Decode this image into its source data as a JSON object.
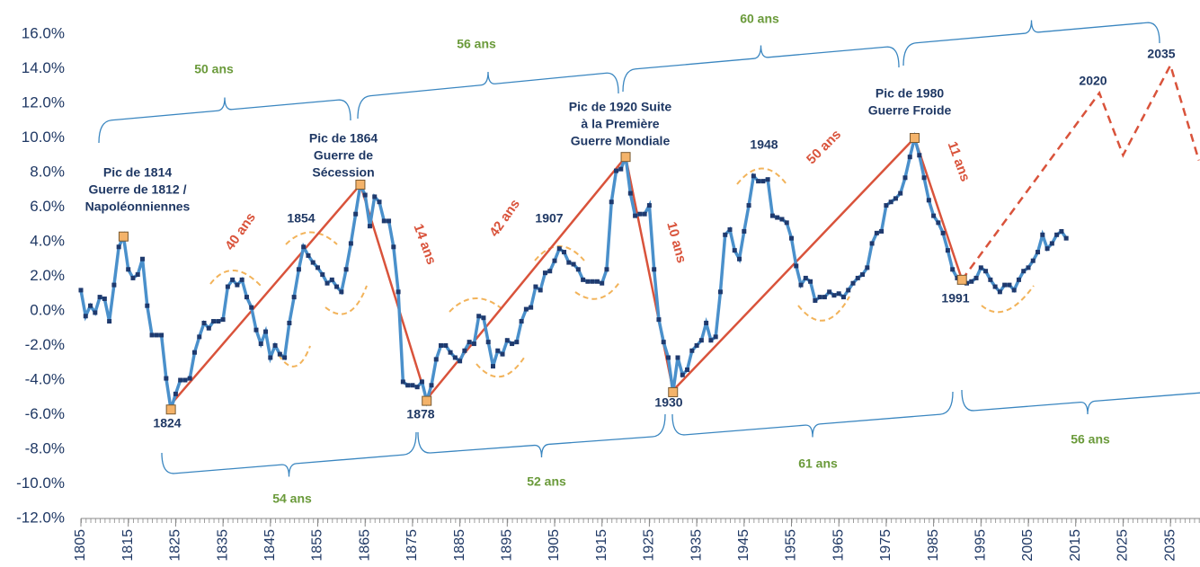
{
  "chart_data": {
    "type": "line",
    "xlim": [
      1805,
      2041
    ],
    "ylim": [
      -12,
      16
    ],
    "xticks": [
      1805,
      1815,
      1825,
      1835,
      1845,
      1855,
      1865,
      1875,
      1885,
      1895,
      1905,
      1915,
      1925,
      1935,
      1945,
      1955,
      1965,
      1975,
      1985,
      1995,
      2005,
      2015,
      2025,
      2035
    ],
    "yticks": [
      {
        "value": 16,
        "label": "16.0%"
      },
      {
        "value": 14,
        "label": "14.0%"
      },
      {
        "value": 12,
        "label": "12.0%"
      },
      {
        "value": 10,
        "label": "10.0%"
      },
      {
        "value": 8,
        "label": "8.0%"
      },
      {
        "value": 6,
        "label": "6.0%"
      },
      {
        "value": 4,
        "label": "4.0%"
      },
      {
        "value": 2,
        "label": "2.0%"
      },
      {
        "value": 0,
        "label": "0.0%"
      },
      {
        "value": -2,
        "label": "-2.0%"
      },
      {
        "value": -4,
        "label": "-4.0%"
      },
      {
        "value": -6,
        "label": "-6.0%"
      },
      {
        "value": -8,
        "label": "-8.0%"
      },
      {
        "value": -10,
        "label": "-10.0%"
      },
      {
        "value": -12,
        "label": "-12.0%"
      }
    ],
    "series": [
      {
        "color": "#4a90cb",
        "marker_color": "#1f3a6e",
        "x": [
          1805,
          1806,
          1807,
          1808,
          1809,
          1810,
          1811,
          1812,
          1813,
          1814,
          1815,
          1816,
          1817,
          1818,
          1819,
          1820,
          1821,
          1822,
          1823,
          1824,
          1825,
          1826,
          1827,
          1828,
          1829,
          1830,
          1831,
          1832,
          1833,
          1834,
          1835,
          1836,
          1837,
          1838,
          1839,
          1840,
          1841,
          1842,
          1843,
          1844,
          1845,
          1846,
          1847,
          1848,
          1849,
          1850,
          1851,
          1852,
          1853,
          1854,
          1855,
          1856,
          1857,
          1858,
          1859,
          1860,
          1861,
          1862,
          1863,
          1864,
          1865,
          1866,
          1867,
          1868,
          1869,
          1870,
          1871,
          1872,
          1873,
          1874,
          1875,
          1876,
          1877,
          1878,
          1879,
          1880,
          1881,
          1882,
          1883,
          1884,
          1885,
          1886,
          1887,
          1888,
          1889,
          1890,
          1891,
          1892,
          1893,
          1894,
          1895,
          1896,
          1897,
          1898,
          1899,
          1900,
          1901,
          1902,
          1903,
          1904,
          1905,
          1906,
          1907,
          1908,
          1909,
          1910,
          1911,
          1912,
          1913,
          1914,
          1915,
          1916,
          1917,
          1918,
          1919,
          1920,
          1921,
          1922,
          1923,
          1924,
          1925,
          1926,
          1927,
          1928,
          1929,
          1930,
          1931,
          1932,
          1933,
          1934,
          1935,
          1936,
          1937,
          1938,
          1939,
          1940,
          1941,
          1942,
          1943,
          1944,
          1945,
          1946,
          1947,
          1948,
          1949,
          1950,
          1951,
          1952,
          1953,
          1954,
          1955,
          1956,
          1957,
          1958,
          1959,
          1960,
          1961,
          1962,
          1963,
          1964,
          1965,
          1966,
          1967,
          1968,
          1969,
          1970,
          1971,
          1972,
          1973,
          1974,
          1975,
          1976,
          1977,
          1978,
          1979,
          1980,
          1981,
          1982,
          1983,
          1984,
          1985,
          1986,
          1987,
          1988,
          1989,
          1990,
          1991,
          1992,
          1993,
          1994,
          1995,
          1996,
          1997,
          1998,
          1999,
          2000,
          2001,
          2002,
          2003,
          2004,
          2005,
          2006,
          2007,
          2008,
          2009,
          2010,
          2011,
          2012,
          2013
        ],
        "values": [
          1.2,
          -0.3,
          0.3,
          -0.1,
          0.8,
          0.7,
          -0.6,
          1.5,
          3.7,
          4.3,
          2.4,
          1.9,
          2.1,
          3.0,
          0.3,
          -1.4,
          -1.4,
          -1.4,
          -3.9,
          -5.7,
          -4.8,
          -4.0,
          -4.0,
          -3.9,
          -2.4,
          -1.5,
          -0.7,
          -1.0,
          -0.6,
          -0.6,
          -0.5,
          1.4,
          1.8,
          1.5,
          1.8,
          0.8,
          0.2,
          -1.1,
          -1.9,
          -1.2,
          -2.7,
          -2.0,
          -2.5,
          -2.7,
          -0.7,
          0.8,
          2.4,
          3.7,
          3.2,
          2.8,
          2.5,
          2.1,
          1.6,
          1.8,
          1.4,
          1.1,
          2.4,
          3.9,
          5.6,
          7.3,
          6.7,
          4.9,
          6.6,
          6.3,
          5.2,
          5.2,
          3.7,
          1.1,
          -4.1,
          -4.3,
          -4.3,
          -4.4,
          -4.1,
          -5.2,
          -4.3,
          -2.8,
          -2.0,
          -2.0,
          -2.4,
          -2.7,
          -2.9,
          -2.3,
          -1.8,
          -1.9,
          -0.3,
          -0.4,
          -1.8,
          -3.2,
          -2.3,
          -2.5,
          -1.7,
          -1.9,
          -1.8,
          -0.6,
          0.1,
          0.2,
          1.4,
          1.2,
          2.2,
          2.3,
          2.9,
          3.6,
          3.4,
          2.8,
          2.7,
          2.4,
          1.8,
          1.7,
          1.7,
          1.7,
          1.6,
          2.4,
          6.3,
          8.1,
          8.2,
          8.9,
          6.8,
          5.5,
          5.6,
          5.6,
          6.1,
          2.4,
          -0.5,
          -1.8,
          -2.7,
          -4.7,
          -2.7,
          -3.7,
          -3.4,
          -2.3,
          -2.0,
          -1.7,
          -0.7,
          -1.7,
          -1.5,
          1.1,
          4.4,
          4.7,
          3.5,
          3.0,
          4.6,
          6.1,
          7.8,
          7.5,
          7.5,
          7.6,
          5.5,
          5.4,
          5.3,
          5.1,
          4.2,
          2.6,
          1.5,
          1.9,
          1.7,
          0.6,
          0.8,
          0.8,
          1.1,
          0.9,
          1.0,
          0.8,
          1.2,
          1.6,
          1.9,
          2.1,
          2.5,
          3.9,
          4.5,
          4.6,
          6.1,
          6.3,
          6.5,
          6.8,
          7.7,
          8.9,
          10.0,
          9.0,
          7.7,
          6.4,
          5.5,
          5.1,
          4.5,
          3.5,
          2.4,
          1.9,
          1.8,
          1.6,
          1.7,
          1.9,
          2.5,
          2.3,
          1.8,
          1.4,
          1.1,
          1.5,
          1.5,
          1.2,
          1.8,
          2.3,
          2.5,
          2.9,
          3.4,
          4.4,
          3.6,
          3.9,
          4.4,
          4.6,
          4.2
        ]
      },
      {
        "color": "#d9533b",
        "x": [
          1824,
          1864,
          1878,
          1920,
          1930,
          1981,
          1991
        ],
        "values": [
          -5.4,
          7.3,
          -5.1,
          8.9,
          -4.6,
          10.0,
          1.8
        ]
      },
      {
        "color": "#d9533b",
        "dashed": true,
        "x": [
          1991,
          2020,
          2025,
          2035,
          2041
        ],
        "values": [
          1.8,
          12.6,
          9.0,
          14.2,
          8.7
        ]
      },
      {
        "color": "#f4b36a",
        "marker": "square",
        "x": [
          1814,
          1824,
          1864,
          1878,
          1920,
          1930,
          1981,
          1991
        ],
        "values": [
          4.3,
          -5.7,
          7.3,
          -5.2,
          8.9,
          -4.7,
          10.0,
          1.8
        ]
      }
    ],
    "annotations": {
      "peaks": [
        [
          "Pic de 1814",
          "Guerre de 1812 /",
          "Napoléonniennes"
        ],
        [
          "Pic de 1864",
          "Guerre de",
          "Sécession"
        ],
        [
          "Pic de 1920 Suite",
          "à la Première",
          "Guerre Mondiale"
        ],
        [
          "Pic de 1980",
          "Guerre Froide"
        ]
      ],
      "years": [
        "1824",
        "1854",
        "1878",
        "1907",
        "1930",
        "1948",
        "1991",
        "2020",
        "2035"
      ],
      "durations": [
        "40 ans",
        "14 ans",
        "42 ans",
        "10 ans",
        "50 ans",
        "11 ans"
      ],
      "cycles_top": [
        "50 ans",
        "56 ans",
        "60 ans"
      ],
      "cycles_bottom": [
        "54 ans",
        "52 ans",
        "61 ans",
        "56 ans"
      ]
    }
  }
}
